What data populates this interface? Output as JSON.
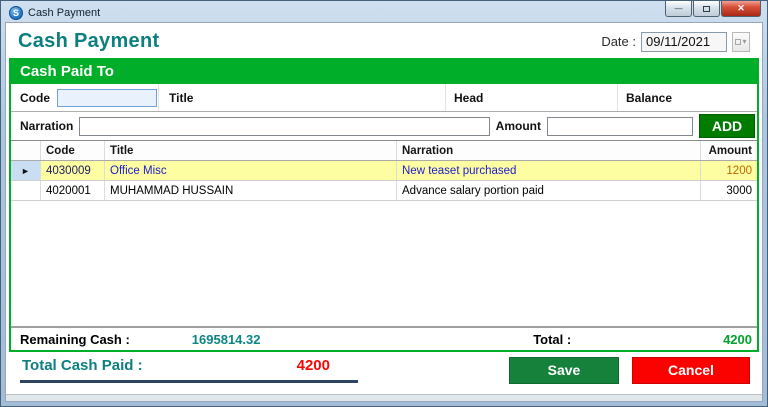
{
  "window": {
    "title": "Cash Payment"
  },
  "header": {
    "title": "Cash Payment",
    "date_label": "Date :",
    "date_value": "09/11/2021"
  },
  "panel": {
    "banner": "Cash Paid To",
    "form": {
      "code_label": "Code",
      "code_value": "",
      "title_label": "Title",
      "head_label": "Head",
      "balance_label": "Balance",
      "narration_label": "Narration",
      "narration_value": "",
      "amount_label": "Amount",
      "amount_value": "",
      "add_button": "ADD"
    },
    "grid": {
      "columns": {
        "code": "Code",
        "title": "Title",
        "narration": "Narration",
        "amount": "Amount"
      },
      "rows": [
        {
          "code": "4030009",
          "title": "Office Misc",
          "narration": "New teaset purchased",
          "amount": "1200",
          "selected": true
        },
        {
          "code": "4020001",
          "title": "MUHAMMAD HUSSAIN",
          "narration": "Advance salary portion paid",
          "amount": "3000",
          "selected": false
        }
      ]
    },
    "totals": {
      "remaining_label": "Remaining Cash :",
      "remaining_value": "1695814.32",
      "total_label": "Total :",
      "total_value": "4200"
    }
  },
  "footer": {
    "total_paid_label": "Total Cash Paid :",
    "total_paid_value": "4200",
    "save_button": "Save",
    "cancel_button": "Cancel"
  },
  "icons": {
    "app_icon_letter": "S",
    "minimize": "—",
    "close": "✕",
    "calendar_dropdown": "▾",
    "row_selector_arrow": "►"
  },
  "colors": {
    "banner_green": "#00ae2a",
    "add_green": "#007c00",
    "save_green": "#15813b",
    "cancel_red": "#fb0100",
    "heading_teal": "#0d7f7f",
    "selected_row_yellow": "#fdfda2",
    "selected_amount_orange": "#bf6900",
    "selected_text_blue": "#1c1ccc",
    "total_green": "#00a32b",
    "paid_red": "#f90606"
  }
}
